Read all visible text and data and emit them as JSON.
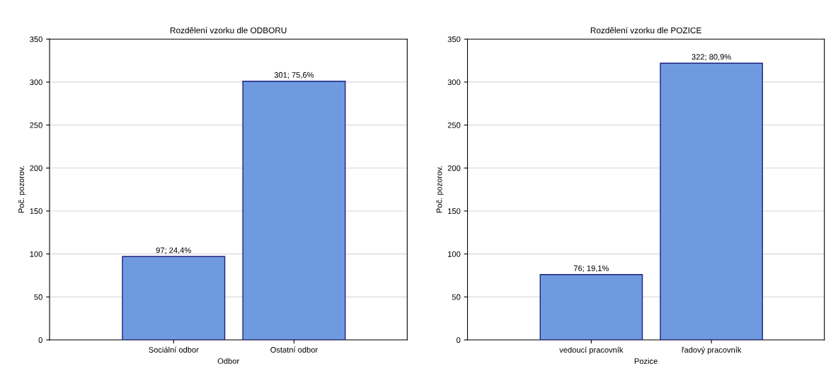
{
  "chart_data": [
    {
      "type": "bar",
      "title": "Rozdělení vzorku dle ODBORU",
      "xlabel": "Odbor",
      "ylabel": "Poč. pozorov.",
      "categories": [
        "Sociální odbor",
        "Ostatní odbor"
      ],
      "values": [
        97,
        301
      ],
      "color": "#6f9ae0",
      "value_labels": [
        "97; 24,4%",
        "301; 75,6%"
      ],
      "ylim": [
        0,
        350
      ],
      "yticks": [
        0,
        50,
        100,
        150,
        200,
        250,
        300,
        350
      ],
      "grid": "y"
    },
    {
      "type": "bar",
      "title": "Rozdělení vzorku dle POZICE",
      "xlabel": "Pozice",
      "ylabel": "Poč. pozorov.",
      "categories": [
        "vedoucí pracovník",
        "řadový pracovník"
      ],
      "values": [
        76,
        322
      ],
      "color": "#6f9ae0",
      "value_labels": [
        "76; 19,1%",
        "322; 80,9%"
      ],
      "ylim": [
        0,
        350
      ],
      "yticks": [
        0,
        50,
        100,
        150,
        200,
        250,
        300,
        350
      ],
      "grid": "y"
    }
  ]
}
